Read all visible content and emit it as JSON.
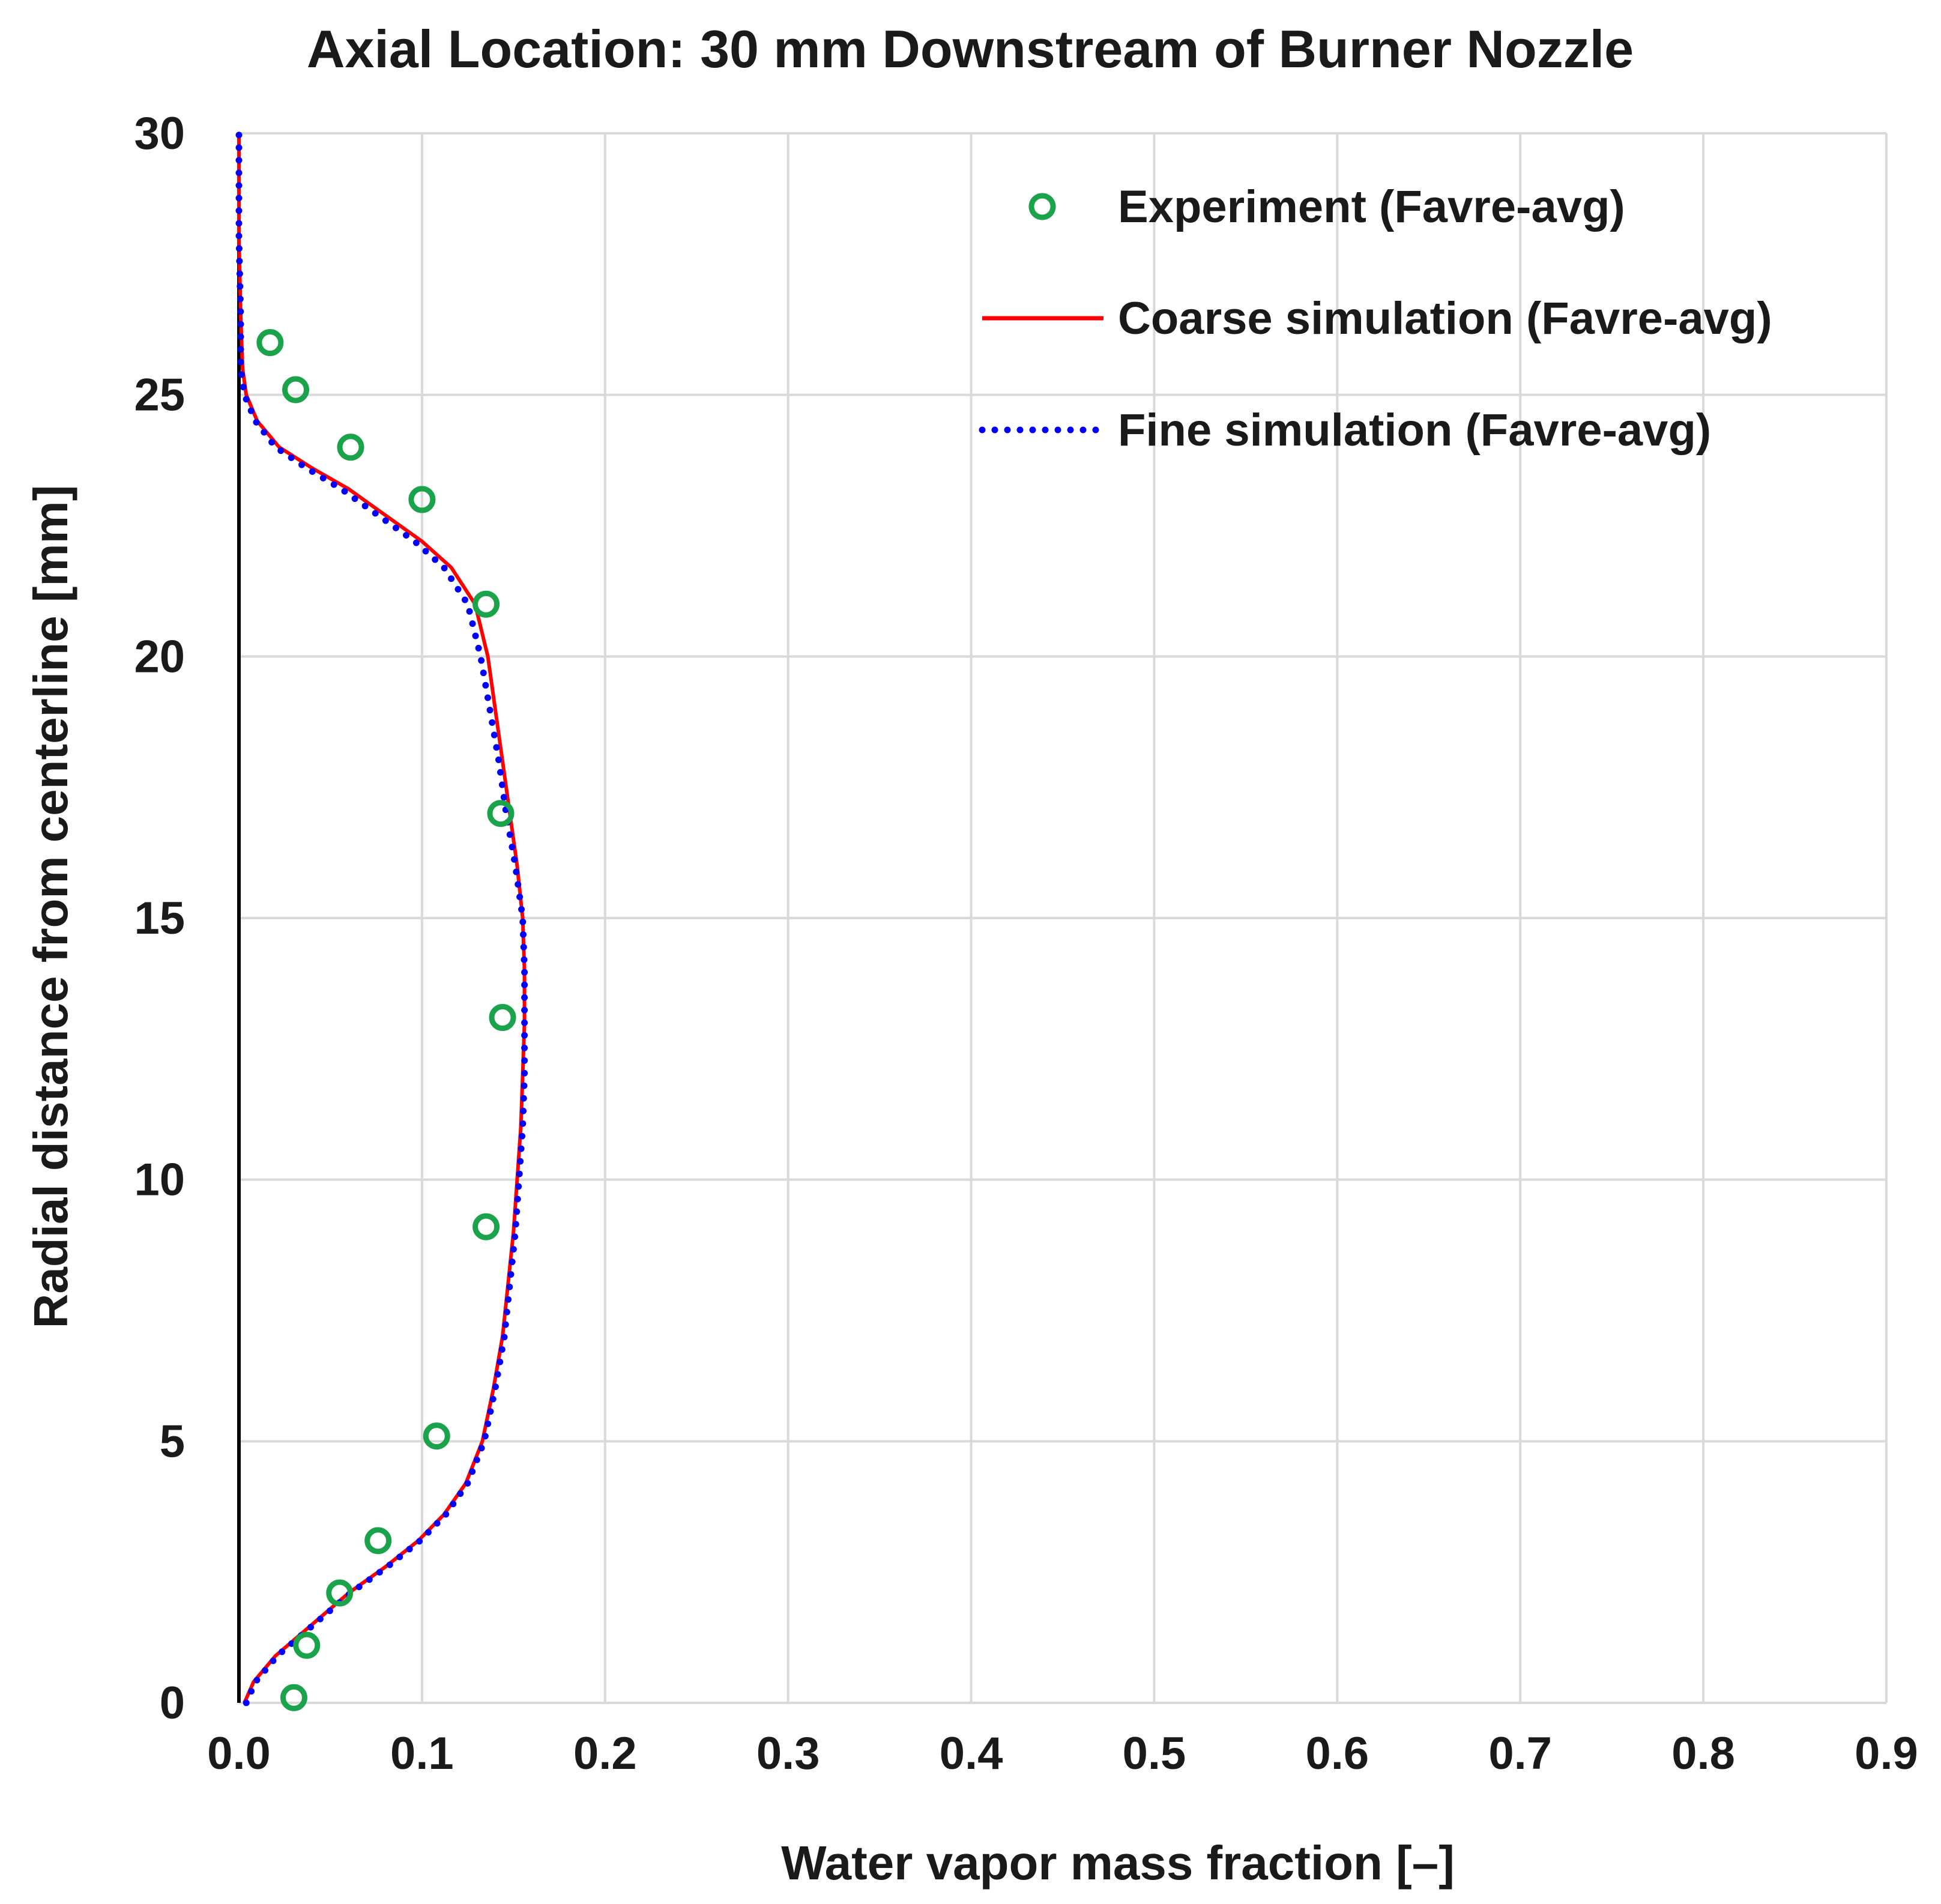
{
  "chart_data": {
    "type": "line",
    "title": "Axial Location: 30 mm Downstream of Burner Nozzle",
    "xlabel": "Water vapor mass fraction [–]",
    "ylabel": "Radial distance from centerline [mm]",
    "xlim": [
      0,
      0.9
    ],
    "ylim": [
      0,
      30
    ],
    "xticks": [
      "0.0",
      "0.1",
      "0.2",
      "0.3",
      "0.4",
      "0.5",
      "0.6",
      "0.7",
      "0.8",
      "0.9"
    ],
    "yticks": [
      "0",
      "5",
      "10",
      "15",
      "20",
      "25",
      "30"
    ],
    "grid": true,
    "legend_position": "top-right",
    "series": [
      {
        "name": "Experiment (Favre-avg)",
        "kind": "scatter",
        "marker": "open-circle",
        "color": "#1aa34a",
        "points": [
          [
            0.03,
            0.1
          ],
          [
            0.037,
            1.1
          ],
          [
            0.055,
            2.1
          ],
          [
            0.076,
            3.1
          ],
          [
            0.108,
            5.1
          ],
          [
            0.135,
            9.1
          ],
          [
            0.144,
            13.1
          ],
          [
            0.143,
            17.0
          ],
          [
            0.135,
            21.0
          ],
          [
            0.1,
            23.0
          ],
          [
            0.061,
            24.0
          ],
          [
            0.031,
            25.1
          ],
          [
            0.017,
            26.0
          ]
        ]
      },
      {
        "name": "Coarse simulation (Favre-avg)",
        "kind": "line",
        "style": "solid",
        "color": "#ff0000",
        "points": [
          [
            0.003,
            0.0
          ],
          [
            0.008,
            0.4
          ],
          [
            0.02,
            0.9
          ],
          [
            0.04,
            1.5
          ],
          [
            0.06,
            2.1
          ],
          [
            0.08,
            2.6
          ],
          [
            0.098,
            3.1
          ],
          [
            0.112,
            3.6
          ],
          [
            0.124,
            4.2
          ],
          [
            0.133,
            5.0
          ],
          [
            0.139,
            6.0
          ],
          [
            0.144,
            7.0
          ],
          [
            0.147,
            8.0
          ],
          [
            0.15,
            9.0
          ],
          [
            0.152,
            10.0
          ],
          [
            0.154,
            11.0
          ],
          [
            0.155,
            12.0
          ],
          [
            0.156,
            13.0
          ],
          [
            0.156,
            14.0
          ],
          [
            0.155,
            15.0
          ],
          [
            0.152,
            16.0
          ],
          [
            0.148,
            17.0
          ],
          [
            0.144,
            18.0
          ],
          [
            0.14,
            19.0
          ],
          [
            0.136,
            20.0
          ],
          [
            0.129,
            21.0
          ],
          [
            0.116,
            21.7
          ],
          [
            0.1,
            22.2
          ],
          [
            0.08,
            22.7
          ],
          [
            0.06,
            23.2
          ],
          [
            0.04,
            23.6
          ],
          [
            0.022,
            24.0
          ],
          [
            0.01,
            24.5
          ],
          [
            0.004,
            25.0
          ],
          [
            0.002,
            25.5
          ],
          [
            0.001,
            26.5
          ],
          [
            0.0,
            28.0
          ],
          [
            0.0,
            30.0
          ]
        ]
      },
      {
        "name": "Fine simulation (Favre-avg)",
        "kind": "line",
        "style": "dotted",
        "color": "#0000ff",
        "points": [
          [
            0.004,
            0.0
          ],
          [
            0.009,
            0.4
          ],
          [
            0.021,
            0.9
          ],
          [
            0.041,
            1.5
          ],
          [
            0.061,
            2.1
          ],
          [
            0.081,
            2.6
          ],
          [
            0.099,
            3.1
          ],
          [
            0.113,
            3.6
          ],
          [
            0.125,
            4.2
          ],
          [
            0.134,
            5.0
          ],
          [
            0.14,
            6.0
          ],
          [
            0.145,
            7.0
          ],
          [
            0.148,
            8.0
          ],
          [
            0.151,
            9.0
          ],
          [
            0.153,
            10.0
          ],
          [
            0.155,
            11.0
          ],
          [
            0.156,
            12.0
          ],
          [
            0.156,
            13.0
          ],
          [
            0.156,
            14.0
          ],
          [
            0.155,
            15.0
          ],
          [
            0.151,
            16.0
          ],
          [
            0.146,
            17.0
          ],
          [
            0.142,
            18.0
          ],
          [
            0.137,
            19.0
          ],
          [
            0.132,
            20.0
          ],
          [
            0.125,
            21.0
          ],
          [
            0.112,
            21.7
          ],
          [
            0.096,
            22.2
          ],
          [
            0.076,
            22.7
          ],
          [
            0.056,
            23.2
          ],
          [
            0.037,
            23.6
          ],
          [
            0.02,
            24.0
          ],
          [
            0.009,
            24.5
          ],
          [
            0.003,
            25.0
          ],
          [
            0.001,
            25.5
          ],
          [
            0.001,
            26.5
          ],
          [
            0.0,
            28.0
          ],
          [
            0.0,
            30.0
          ]
        ]
      }
    ]
  }
}
